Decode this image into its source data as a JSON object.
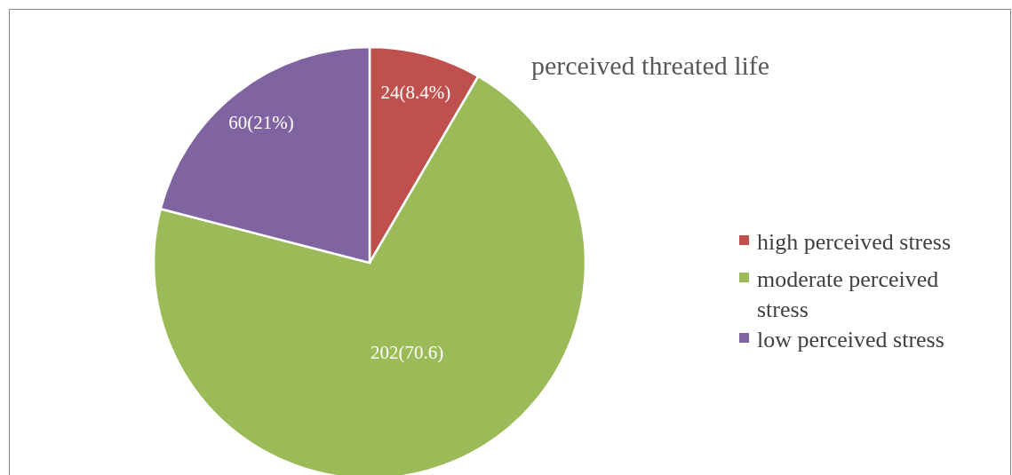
{
  "chart_data": {
    "type": "pie",
    "title": "perceived threated life",
    "categories": [
      "high perceived stress",
      "moderate perceived stress",
      "low perceived stress"
    ],
    "values": [
      24,
      202,
      60
    ],
    "value_labels": [
      "24(8.4%)",
      "202(70.6)",
      "60(21%)"
    ],
    "colors": [
      "#c0504d",
      "#9bbb59",
      "#8064a2"
    ],
    "legend": "right"
  }
}
